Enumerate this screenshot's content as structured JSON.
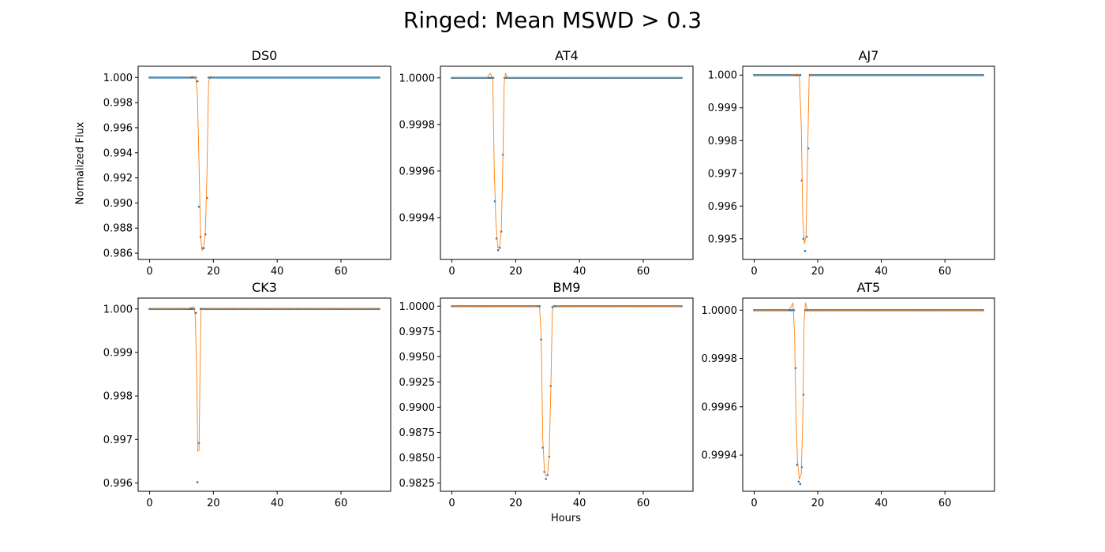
{
  "figure": {
    "suptitle": "Ringed: Mean MSWD > 0.3",
    "xlabel": "Hours",
    "ylabel": "Normalized Flux",
    "colors": {
      "data": "#1f77b4",
      "model": "#ff7f0e",
      "axes": "#000000"
    }
  },
  "chart_data": [
    {
      "type": "scatter",
      "title": "DS0",
      "xlabel": "",
      "ylabel": "Normalized Flux",
      "xlim": [
        -3.6,
        75.6
      ],
      "ylim": [
        0.9855,
        1.0009
      ],
      "xticks": [
        0,
        20,
        40,
        60
      ],
      "xtick_labels": [
        "0",
        "20",
        "40",
        "60"
      ],
      "yticks": [
        0.986,
        0.988,
        0.99,
        0.992,
        0.994,
        0.996,
        0.998,
        1.0
      ],
      "ytick_labels": [
        "0.986",
        "0.988",
        "0.990",
        "0.992",
        "0.994",
        "0.996",
        "0.998",
        "1.000"
      ],
      "cadence": 0.5,
      "x_range": [
        0,
        72
      ],
      "baseline": 1.0,
      "series": [
        {
          "kind": "data",
          "points": [
            [
              15.0,
              0.9997
            ],
            [
              15.5,
              0.9897
            ],
            [
              16.0,
              0.9873
            ],
            [
              16.5,
              0.9864
            ],
            [
              17.0,
              0.9864
            ],
            [
              17.5,
              0.9875
            ],
            [
              18.0,
              0.9904
            ]
          ]
        },
        {
          "kind": "model",
          "points": [
            [
              0,
              1.0
            ],
            [
              12.0,
              1.0
            ],
            [
              13.5,
              1.0001
            ],
            [
              14.5,
              0.99995
            ],
            [
              15.0,
              0.9985
            ],
            [
              15.5,
              0.993
            ],
            [
              16.0,
              0.9872
            ],
            [
              16.5,
              0.9862
            ],
            [
              17.0,
              0.9866
            ],
            [
              17.5,
              0.9878
            ],
            [
              18.0,
              0.9925
            ],
            [
              18.5,
              0.9996
            ],
            [
              19.0,
              1.0001
            ],
            [
              20.0,
              1.0
            ],
            [
              72,
              1.0
            ]
          ]
        }
      ]
    },
    {
      "type": "scatter",
      "title": "AT4",
      "xlabel": "",
      "ylabel": "",
      "xlim": [
        -3.6,
        75.6
      ],
      "ylim": [
        0.99922,
        1.00005
      ],
      "xticks": [
        0,
        20,
        40,
        60
      ],
      "xtick_labels": [
        "0",
        "20",
        "40",
        "60"
      ],
      "yticks": [
        0.9994,
        0.9996,
        0.9998,
        1.0
      ],
      "ytick_labels": [
        "0.9994",
        "0.9996",
        "0.9998",
        "1.0000"
      ],
      "cadence": 0.5,
      "x_range": [
        0,
        72
      ],
      "baseline": 1.0,
      "series": [
        {
          "kind": "data",
          "points": [
            [
              13.5,
              0.99947
            ],
            [
              14.0,
              0.99931
            ],
            [
              14.5,
              0.99926
            ],
            [
              15.0,
              0.99927
            ],
            [
              15.5,
              0.99934
            ],
            [
              16.0,
              0.99967
            ]
          ]
        },
        {
          "kind": "model",
          "points": [
            [
              0,
              1.0
            ],
            [
              11.0,
              1.0
            ],
            [
              12.0,
              1.00002
            ],
            [
              12.8,
              1.0
            ],
            [
              13.3,
              0.9996
            ],
            [
              13.8,
              0.99938
            ],
            [
              14.4,
              0.99927
            ],
            [
              15.0,
              0.99928
            ],
            [
              15.5,
              0.99935
            ],
            [
              16.0,
              0.99965
            ],
            [
              16.4,
              0.99998
            ],
            [
              16.8,
              1.00002
            ],
            [
              17.5,
              1.0
            ],
            [
              72,
              1.0
            ]
          ]
        }
      ]
    },
    {
      "type": "scatter",
      "title": "AJ7",
      "xlabel": "",
      "ylabel": "",
      "xlim": [
        -3.6,
        75.6
      ],
      "ylim": [
        0.99437,
        1.00027
      ],
      "xticks": [
        0,
        20,
        40,
        60
      ],
      "xtick_labels": [
        "0",
        "20",
        "40",
        "60"
      ],
      "yticks": [
        0.995,
        0.996,
        0.997,
        0.998,
        0.999,
        1.0
      ],
      "ytick_labels": [
        "0.995",
        "0.996",
        "0.997",
        "0.998",
        "0.999",
        "1.000"
      ],
      "cadence": 0.5,
      "x_range": [
        0,
        72
      ],
      "baseline": 1.0,
      "series": [
        {
          "kind": "data",
          "points": [
            [
              15.0,
              0.99678
            ],
            [
              15.5,
              0.995
            ],
            [
              16.0,
              0.99463
            ],
            [
              16.5,
              0.99506
            ],
            [
              17.0,
              0.99776
            ]
          ]
        },
        {
          "kind": "model",
          "points": [
            [
              0,
              1.0
            ],
            [
              12.0,
              1.0
            ],
            [
              13.5,
              1.00003
            ],
            [
              14.2,
              1.0
            ],
            [
              14.8,
              0.9985
            ],
            [
              15.3,
              0.9956
            ],
            [
              15.8,
              0.99485
            ],
            [
              16.3,
              0.99505
            ],
            [
              16.8,
              0.9975
            ],
            [
              17.3,
              0.99995
            ],
            [
              17.8,
              1.00003
            ],
            [
              18.5,
              1.0
            ],
            [
              72,
              1.0
            ]
          ]
        }
      ]
    },
    {
      "type": "scatter",
      "title": "CK3",
      "xlabel": "",
      "ylabel": "",
      "xlim": [
        -3.6,
        75.6
      ],
      "ylim": [
        0.99581,
        1.00025
      ],
      "xticks": [
        0,
        20,
        40,
        60
      ],
      "xtick_labels": [
        "0",
        "20",
        "40",
        "60"
      ],
      "yticks": [
        0.996,
        0.997,
        0.998,
        0.999,
        1.0
      ],
      "ytick_labels": [
        "0.996",
        "0.997",
        "0.998",
        "0.999",
        "1.000"
      ],
      "cadence": 0.5,
      "x_range": [
        0,
        72
      ],
      "baseline": 1.0,
      "series": [
        {
          "kind": "data",
          "points": [
            [
              14.5,
              0.99991
            ],
            [
              15.0,
              0.99602
            ],
            [
              15.5,
              0.99692
            ]
          ]
        },
        {
          "kind": "model",
          "points": [
            [
              0,
              1.0
            ],
            [
              11.5,
              1.0
            ],
            [
              13.0,
              1.00003
            ],
            [
              13.8,
              1.00005
            ],
            [
              14.3,
              0.99985
            ],
            [
              14.8,
              0.9985
            ],
            [
              15.1,
              0.99673
            ],
            [
              15.5,
              0.99675
            ],
            [
              15.8,
              0.9985
            ],
            [
              16.1,
              0.99998
            ],
            [
              16.6,
              1.0
            ],
            [
              72,
              1.0
            ]
          ]
        }
      ]
    },
    {
      "type": "scatter",
      "title": "BM9",
      "xlabel": "Hours",
      "ylabel": "",
      "xlim": [
        -3.6,
        75.6
      ],
      "ylim": [
        0.98168,
        1.0008
      ],
      "xticks": [
        0,
        20,
        40,
        60
      ],
      "xtick_labels": [
        "0",
        "20",
        "40",
        "60"
      ],
      "yticks": [
        0.9825,
        0.985,
        0.9875,
        0.99,
        0.9925,
        0.995,
        0.9975,
        1.0
      ],
      "ytick_labels": [
        "0.9825",
        "0.9850",
        "0.9875",
        "0.9900",
        "0.9925",
        "0.9950",
        "0.9975",
        "1.0000"
      ],
      "cadence": 0.5,
      "x_range": [
        0,
        72
      ],
      "baseline": 1.0,
      "series": [
        {
          "kind": "data",
          "points": [
            [
              28.0,
              0.9967
            ],
            [
              28.5,
              0.986
            ],
            [
              29.0,
              0.9836
            ],
            [
              29.5,
              0.9829
            ],
            [
              30.0,
              0.9833
            ],
            [
              30.5,
              0.9851
            ],
            [
              31.0,
              0.9921
            ],
            [
              31.5,
              0.9999
            ]
          ]
        },
        {
          "kind": "model",
          "points": [
            [
              0,
              1.0
            ],
            [
              26.5,
              1.0
            ],
            [
              27.5,
              0.9999
            ],
            [
              28.0,
              0.9968
            ],
            [
              28.5,
              0.9868
            ],
            [
              29.0,
              0.9838
            ],
            [
              29.5,
              0.98315
            ],
            [
              30.0,
              0.9834
            ],
            [
              30.5,
              0.9852
            ],
            [
              31.0,
              0.9915
            ],
            [
              31.5,
              0.9995
            ],
            [
              32.0,
              1.0001
            ],
            [
              33.0,
              1.0
            ],
            [
              72,
              1.0
            ]
          ]
        }
      ]
    },
    {
      "type": "scatter",
      "title": "AT5",
      "xlabel": "",
      "ylabel": "",
      "xlim": [
        -3.6,
        75.6
      ],
      "ylim": [
        0.99925,
        1.00005
      ],
      "xticks": [
        0,
        20,
        40,
        60
      ],
      "xtick_labels": [
        "0",
        "20",
        "40",
        "60"
      ],
      "yticks": [
        0.9994,
        0.9996,
        0.9998,
        1.0
      ],
      "ytick_labels": [
        "0.9994",
        "0.9996",
        "0.9998",
        "1.0000"
      ],
      "cadence": 0.5,
      "x_range": [
        0,
        72
      ],
      "baseline": 1.0,
      "series": [
        {
          "kind": "data",
          "points": [
            [
              13.0,
              0.99976
            ],
            [
              13.5,
              0.99936
            ],
            [
              14.0,
              0.99929
            ],
            [
              14.5,
              0.99928
            ],
            [
              15.0,
              0.99935
            ],
            [
              15.5,
              0.99965
            ]
          ]
        },
        {
          "kind": "model",
          "points": [
            [
              0,
              1.0
            ],
            [
              10.5,
              1.0
            ],
            [
              11.5,
              1.00001
            ],
            [
              12.2,
              1.00003
            ],
            [
              12.7,
              0.9999
            ],
            [
              13.1,
              0.9996
            ],
            [
              13.6,
              0.99938
            ],
            [
              14.2,
              0.9993
            ],
            [
              14.8,
              0.99932
            ],
            [
              15.3,
              0.99955
            ],
            [
              15.7,
              0.99995
            ],
            [
              16.1,
              1.00003
            ],
            [
              16.8,
              1.0
            ],
            [
              72,
              1.0
            ]
          ]
        }
      ]
    }
  ]
}
